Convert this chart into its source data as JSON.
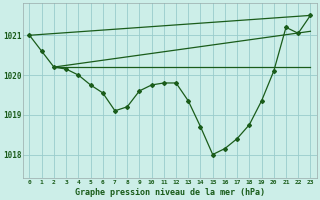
{
  "background_color": "#cceee8",
  "grid_color": "#99cccc",
  "line_color": "#1a5c1a",
  "title": "Graphe pression niveau de la mer (hPa)",
  "ylabel_values": [
    1018,
    1019,
    1020,
    1021
  ],
  "xlim": [
    -0.5,
    23.5
  ],
  "ylim": [
    1017.4,
    1021.8
  ],
  "hours": [
    0,
    1,
    2,
    3,
    4,
    5,
    6,
    7,
    8,
    9,
    10,
    11,
    12,
    13,
    14,
    15,
    16,
    17,
    18,
    19,
    20,
    21,
    22,
    23
  ],
  "series1": [
    1021.0,
    1020.6,
    1020.2,
    1020.15,
    1020.0,
    1019.75,
    1019.55,
    1019.1,
    1019.2,
    1019.6,
    1019.75,
    1019.8,
    1019.8,
    1019.35,
    1018.7,
    1018.0,
    1018.15,
    1018.4,
    1018.75,
    1019.35,
    1020.1,
    1021.2,
    1021.05,
    1021.5
  ],
  "series2_x": [
    2,
    23
  ],
  "series2_y": [
    1020.2,
    1020.2
  ],
  "series3_x": [
    2,
    23
  ],
  "series3_y": [
    1020.2,
    1021.1
  ],
  "series4_x": [
    0,
    23
  ],
  "series4_y": [
    1021.0,
    1021.5
  ]
}
